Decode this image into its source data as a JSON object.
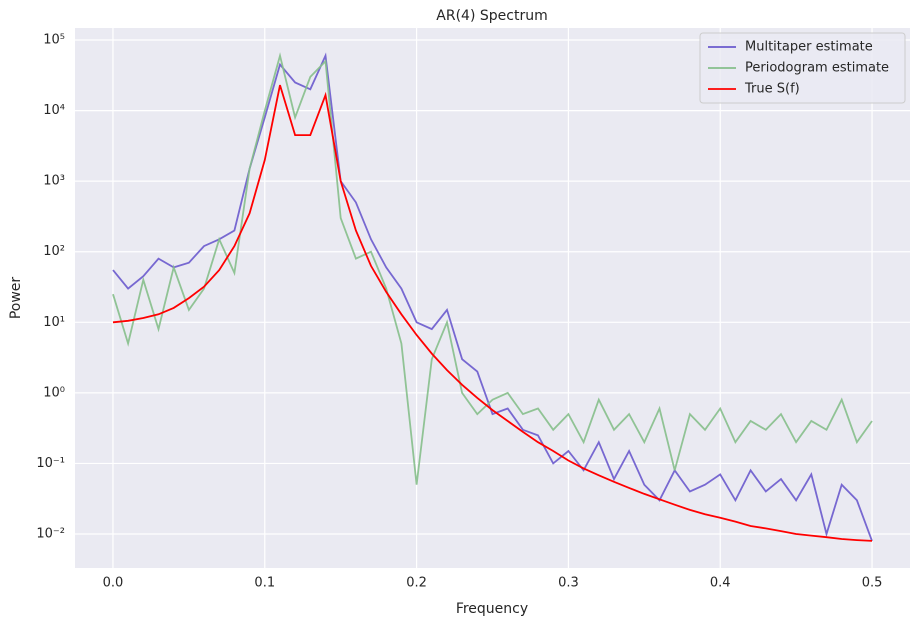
{
  "chart_data": {
    "type": "line",
    "title": "AR(4) Spectrum",
    "x_label": "Frequency",
    "y_label": "Power",
    "yscale": "log",
    "grid": true,
    "legend": "upper right",
    "xlim": [
      -0.025,
      0.525
    ],
    "ylim": [
      0.0033,
      148000
    ],
    "xticks": [
      {
        "value": 0,
        "label": "0.0"
      },
      0.1,
      0.2,
      0.3,
      0.4,
      0.5
    ],
    "yticks": [
      {
        "value": 0.01,
        "label": "10⁻²"
      },
      {
        "value": 0.1,
        "label": "10⁻¹"
      },
      {
        "value": 1,
        "label": "10⁰"
      },
      {
        "value": 10,
        "label": "10¹"
      },
      {
        "value": 100,
        "label": "10²"
      },
      {
        "value": 1000,
        "label": "10³"
      },
      {
        "value": 10000,
        "label": "10⁴"
      },
      {
        "value": 100000,
        "label": "10⁵"
      }
    ],
    "x": [
      0,
      0.01,
      0.02,
      0.03,
      0.04,
      0.05,
      0.06,
      0.07,
      0.08,
      0.09,
      0.1,
      0.11,
      0.12,
      0.13,
      0.14,
      0.15,
      0.16,
      0.17,
      0.18,
      0.19,
      0.2,
      0.21,
      0.22,
      0.23,
      0.24,
      0.25,
      0.26,
      0.27,
      0.28,
      0.29,
      0.3,
      0.31,
      0.32,
      0.33,
      0.34,
      0.35,
      0.36,
      0.37,
      0.38,
      0.39,
      0.4,
      0.41,
      0.42,
      0.43,
      0.44,
      0.45,
      0.46,
      0.47,
      0.48,
      0.49,
      0.5
    ],
    "series": [
      {
        "name": "Multitaper estimate",
        "color": "#6a5acd",
        "values": [
          55,
          30,
          45,
          80,
          60,
          70,
          120,
          150,
          200,
          1500,
          8000,
          45000,
          25000,
          20000,
          60000,
          1000,
          500,
          150,
          60,
          30,
          10,
          8,
          15,
          3,
          2,
          0.5,
          0.6,
          0.3,
          0.25,
          0.1,
          0.15,
          0.08,
          0.2,
          0.06,
          0.15,
          0.05,
          0.03,
          0.08,
          0.04,
          0.05,
          0.07,
          0.03,
          0.08,
          0.04,
          0.06,
          0.03,
          0.07,
          0.01,
          0.05,
          0.03,
          0.008
        ]
      },
      {
        "name": "Periodogram estimate",
        "color": "#86bf8b",
        "values": [
          25,
          5,
          40,
          8,
          60,
          15,
          30,
          150,
          50,
          1500,
          10000,
          60000,
          8000,
          30000,
          50000,
          300,
          80,
          100,
          30,
          5,
          0.05,
          3,
          10,
          1,
          0.5,
          0.8,
          1,
          0.5,
          0.6,
          0.3,
          0.5,
          0.2,
          0.8,
          0.3,
          0.5,
          0.2,
          0.6,
          0.08,
          0.5,
          0.3,
          0.6,
          0.2,
          0.4,
          0.3,
          0.5,
          0.2,
          0.4,
          0.3,
          0.8,
          0.2,
          0.4
        ]
      },
      {
        "name": "True S(f)",
        "color": "#ff0000",
        "values": [
          10,
          10.5,
          11.5,
          13,
          16,
          22,
          32,
          55,
          120,
          350,
          2000,
          23000,
          4500,
          4500,
          16600,
          1000,
          200,
          63,
          27,
          13,
          6.6,
          3.6,
          2.1,
          1.3,
          0.85,
          0.57,
          0.4,
          0.28,
          0.2,
          0.15,
          0.11,
          0.085,
          0.068,
          0.055,
          0.045,
          0.037,
          0.031,
          0.026,
          0.022,
          0.019,
          0.017,
          0.015,
          0.013,
          0.012,
          0.011,
          0.01,
          0.0095,
          0.009,
          0.0085,
          0.0082,
          0.008
        ]
      }
    ]
  }
}
